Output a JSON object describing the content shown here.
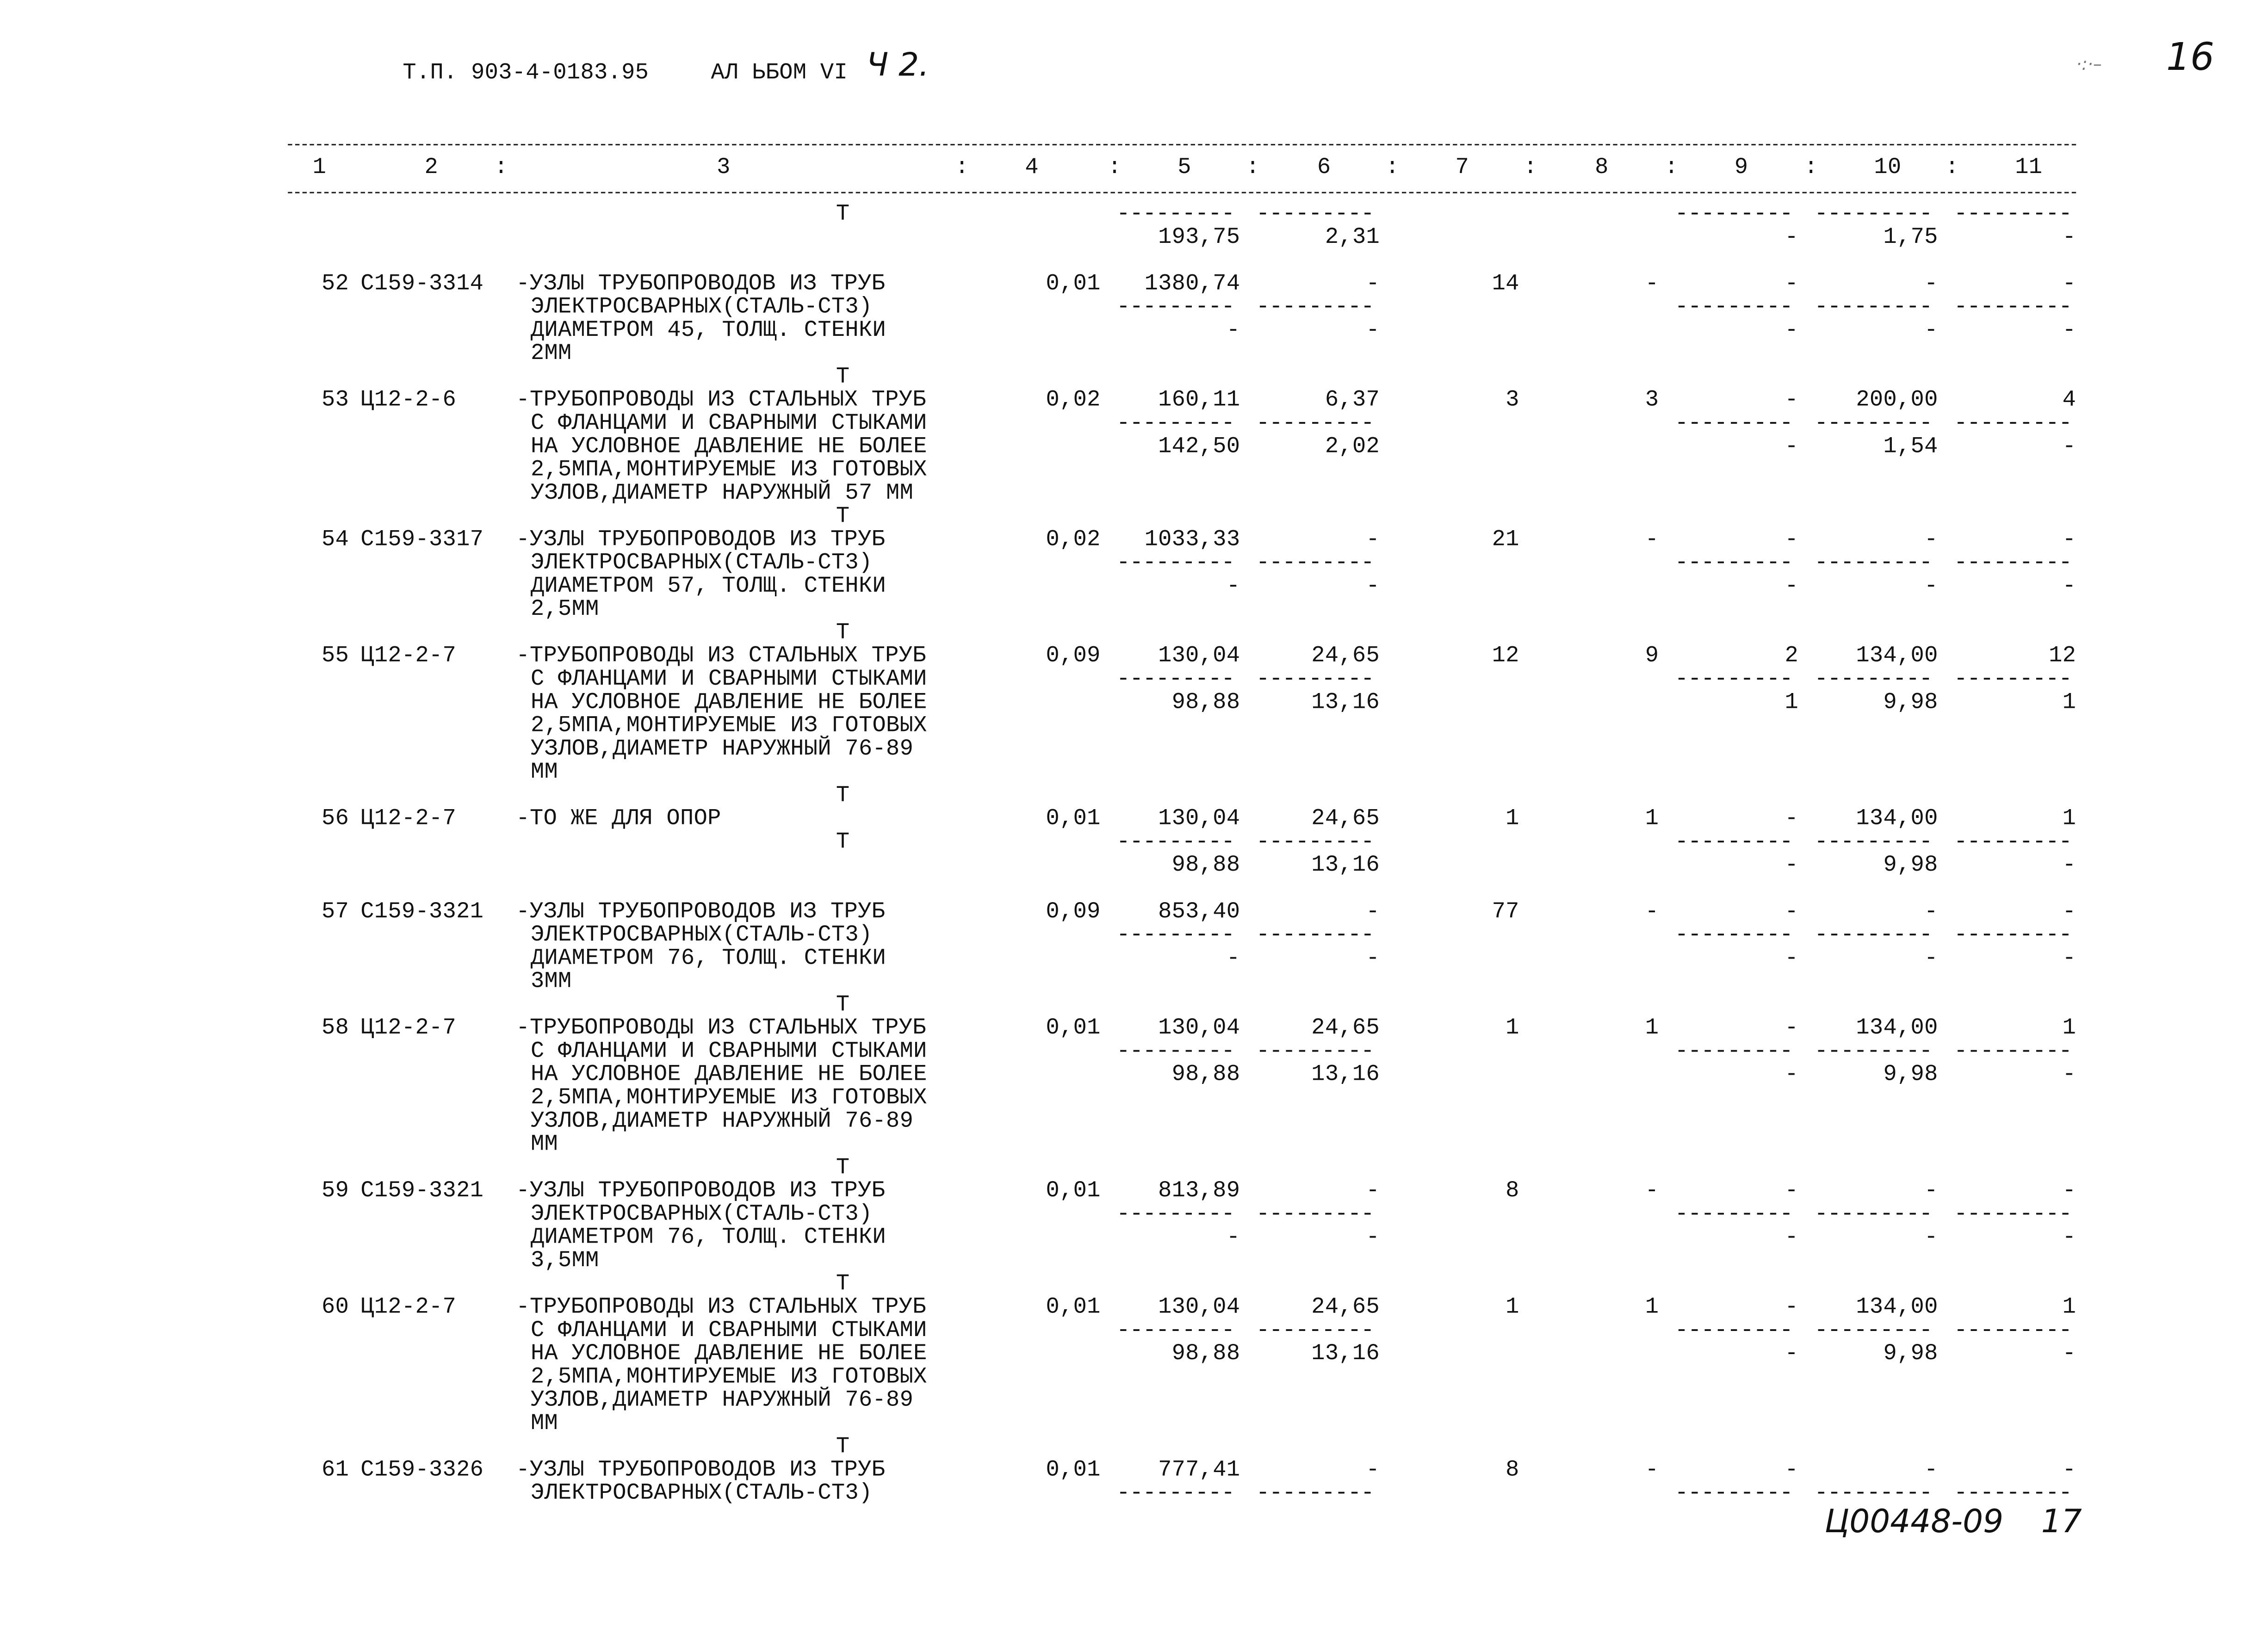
{
  "header": {
    "doc_code": "Т.П. 903-4-0183.95",
    "album": "АЛ ЬБОМ VI",
    "part_handwritten": "Ч 2.",
    "sheet_handwritten": "16",
    "footer_code_handwritten": "Ц00448-09",
    "footer_page_handwritten": "17"
  },
  "columns": [
    "1",
    "2",
    ":",
    "3",
    ":",
    "4",
    ":",
    "5",
    ":",
    "6",
    ":",
    "7",
    ":",
    "8",
    ":",
    "9",
    ":",
    "10",
    ":",
    "11"
  ],
  "t_marker": "Т",
  "dash": "---------",
  "continuation": {
    "bottom": [
      "193,75",
      "2,31",
      "-",
      "1,75",
      "-"
    ]
  },
  "items": [
    {
      "num": "52",
      "code": "С159-3314",
      "desc": [
        "-УЗЛЫ ТРУБОПРОВОДОВ ИЗ ТРУБ",
        "ЭЛЕКТРОСВАРНЫХ(СТАЛЬ-СТ3)",
        "ДИАМЕТРОМ 45, ТОЛЩ. СТЕНКИ",
        "2ММ"
      ],
      "top": [
        "0,01",
        "1380,74",
        "-",
        "14",
        "-",
        "-",
        "-",
        "-"
      ],
      "bottom": [
        "-",
        "-",
        "-",
        "-",
        "-"
      ]
    },
    {
      "num": "53",
      "code": "Ц12-2-6",
      "desc": [
        "-ТРУБОПРОВОДЫ ИЗ СТАЛЬНЫХ ТРУБ",
        "С ФЛАНЦАМИ И СВАРНЫМИ СТЫКАМИ",
        "НА УСЛОВНОЕ ДАВЛЕНИЕ НЕ БОЛЕЕ",
        "2,5МПА,МОНТИРУЕМЫЕ ИЗ ГОТОВЫХ",
        "УЗЛОВ,ДИАМЕТР НАРУЖНЫЙ 57 ММ"
      ],
      "top": [
        "0,02",
        "160,11",
        "6,37",
        "3",
        "3",
        "-",
        "200,00",
        "4"
      ],
      "bottom": [
        "142,50",
        "2,02",
        "-",
        "1,54",
        "-"
      ]
    },
    {
      "num": "54",
      "code": "С159-3317",
      "desc": [
        "-УЗЛЫ ТРУБОПРОВОДОВ ИЗ ТРУБ",
        "ЭЛЕКТРОСВАРНЫХ(СТАЛЬ-СТ3)",
        "ДИАМЕТРОМ 57, ТОЛЩ. СТЕНКИ",
        "2,5ММ"
      ],
      "top": [
        "0,02",
        "1033,33",
        "-",
        "21",
        "-",
        "-",
        "-",
        "-"
      ],
      "bottom": [
        "-",
        "-",
        "-",
        "-",
        "-"
      ]
    },
    {
      "num": "55",
      "code": "Ц12-2-7",
      "desc": [
        "-ТРУБОПРОВОДЫ ИЗ СТАЛЬНЫХ ТРУБ",
        "С ФЛАНЦАМИ И СВАРНЫМИ СТЫКАМИ",
        "НА УСЛОВНОЕ ДАВЛЕНИЕ НЕ БОЛЕЕ",
        "2,5МПА,МОНТИРУЕМЫЕ ИЗ ГОТОВЫХ",
        "УЗЛОВ,ДИАМЕТР НАРУЖНЫЙ 76-89",
        "ММ"
      ],
      "top": [
        "0,09",
        "130,04",
        "24,65",
        "12",
        "9",
        "2",
        "134,00",
        "12"
      ],
      "bottom": [
        "98,88",
        "13,16",
        "1",
        "9,98",
        "1"
      ]
    },
    {
      "num": "56",
      "code": "Ц12-2-7",
      "desc": [
        "-ТО ЖЕ ДЛЯ ОПОР"
      ],
      "top": [
        "0,01",
        "130,04",
        "24,65",
        "1",
        "1",
        "-",
        "134,00",
        "1"
      ],
      "bottom": [
        "98,88",
        "13,16",
        "-",
        "9,98",
        "-"
      ]
    },
    {
      "num": "57",
      "code": "С159-3321",
      "desc": [
        "-УЗЛЫ ТРУБОПРОВОДОВ ИЗ ТРУБ",
        "ЭЛЕКТРОСВАРНЫХ(СТАЛЬ-СТ3)",
        "ДИАМЕТРОМ 76, ТОЛЩ. СТЕНКИ",
        "3ММ"
      ],
      "top": [
        "0,09",
        "853,40",
        "-",
        "77",
        "-",
        "-",
        "-",
        "-"
      ],
      "bottom": [
        "-",
        "-",
        "-",
        "-",
        "-"
      ]
    },
    {
      "num": "58",
      "code": "Ц12-2-7",
      "desc": [
        "-ТРУБОПРОВОДЫ ИЗ СТАЛЬНЫХ ТРУБ",
        "С ФЛАНЦАМИ И СВАРНЫМИ СТЫКАМИ",
        "НА УСЛОВНОЕ ДАВЛЕНИЕ НЕ БОЛЕЕ",
        "2,5МПА,МОНТИРУЕМЫЕ ИЗ ГОТОВЫХ",
        "УЗЛОВ,ДИАМЕТР НАРУЖНЫЙ 76-89",
        "ММ"
      ],
      "top": [
        "0,01",
        "130,04",
        "24,65",
        "1",
        "1",
        "-",
        "134,00",
        "1"
      ],
      "bottom": [
        "98,88",
        "13,16",
        "-",
        "9,98",
        "-"
      ]
    },
    {
      "num": "59",
      "code": "С159-3321",
      "desc": [
        "-УЗЛЫ ТРУБОПРОВОДОВ ИЗ ТРУБ",
        "ЭЛЕКТРОСВАРНЫХ(СТАЛЬ-СТ3)",
        "ДИАМЕТРОМ 76, ТОЛЩ. СТЕНКИ",
        "3,5ММ"
      ],
      "top": [
        "0,01",
        "813,89",
        "-",
        "8",
        "-",
        "-",
        "-",
        "-"
      ],
      "bottom": [
        "-",
        "-",
        "-",
        "-",
        "-"
      ]
    },
    {
      "num": "60",
      "code": "Ц12-2-7",
      "desc": [
        "-ТРУБОПРОВОДЫ ИЗ СТАЛЬНЫХ ТРУБ",
        "С ФЛАНЦАМИ И СВАРНЫМИ СТЫКАМИ",
        "НА УСЛОВНОЕ ДАВЛЕНИЕ НЕ БОЛЕЕ",
        "2,5МПА,МОНТИРУЕМЫЕ ИЗ ГОТОВЫХ",
        "УЗЛОВ,ДИАМЕТР НАРУЖНЫЙ 76-89",
        "ММ"
      ],
      "top": [
        "0,01",
        "130,04",
        "24,65",
        "1",
        "1",
        "-",
        "134,00",
        "1"
      ],
      "bottom": [
        "98,88",
        "13,16",
        "-",
        "9,98",
        "-"
      ]
    },
    {
      "num": "61",
      "code": "С159-3326",
      "desc": [
        "-УЗЛЫ ТРУБОПРОВОДОВ ИЗ ТРУБ",
        "ЭЛЕКТРОСВАРНЫХ(СТАЛЬ-СТ3)"
      ],
      "top": [
        "0,01",
        "777,41",
        "-",
        "8",
        "-",
        "-",
        "-",
        "-"
      ],
      "bottom": []
    }
  ]
}
